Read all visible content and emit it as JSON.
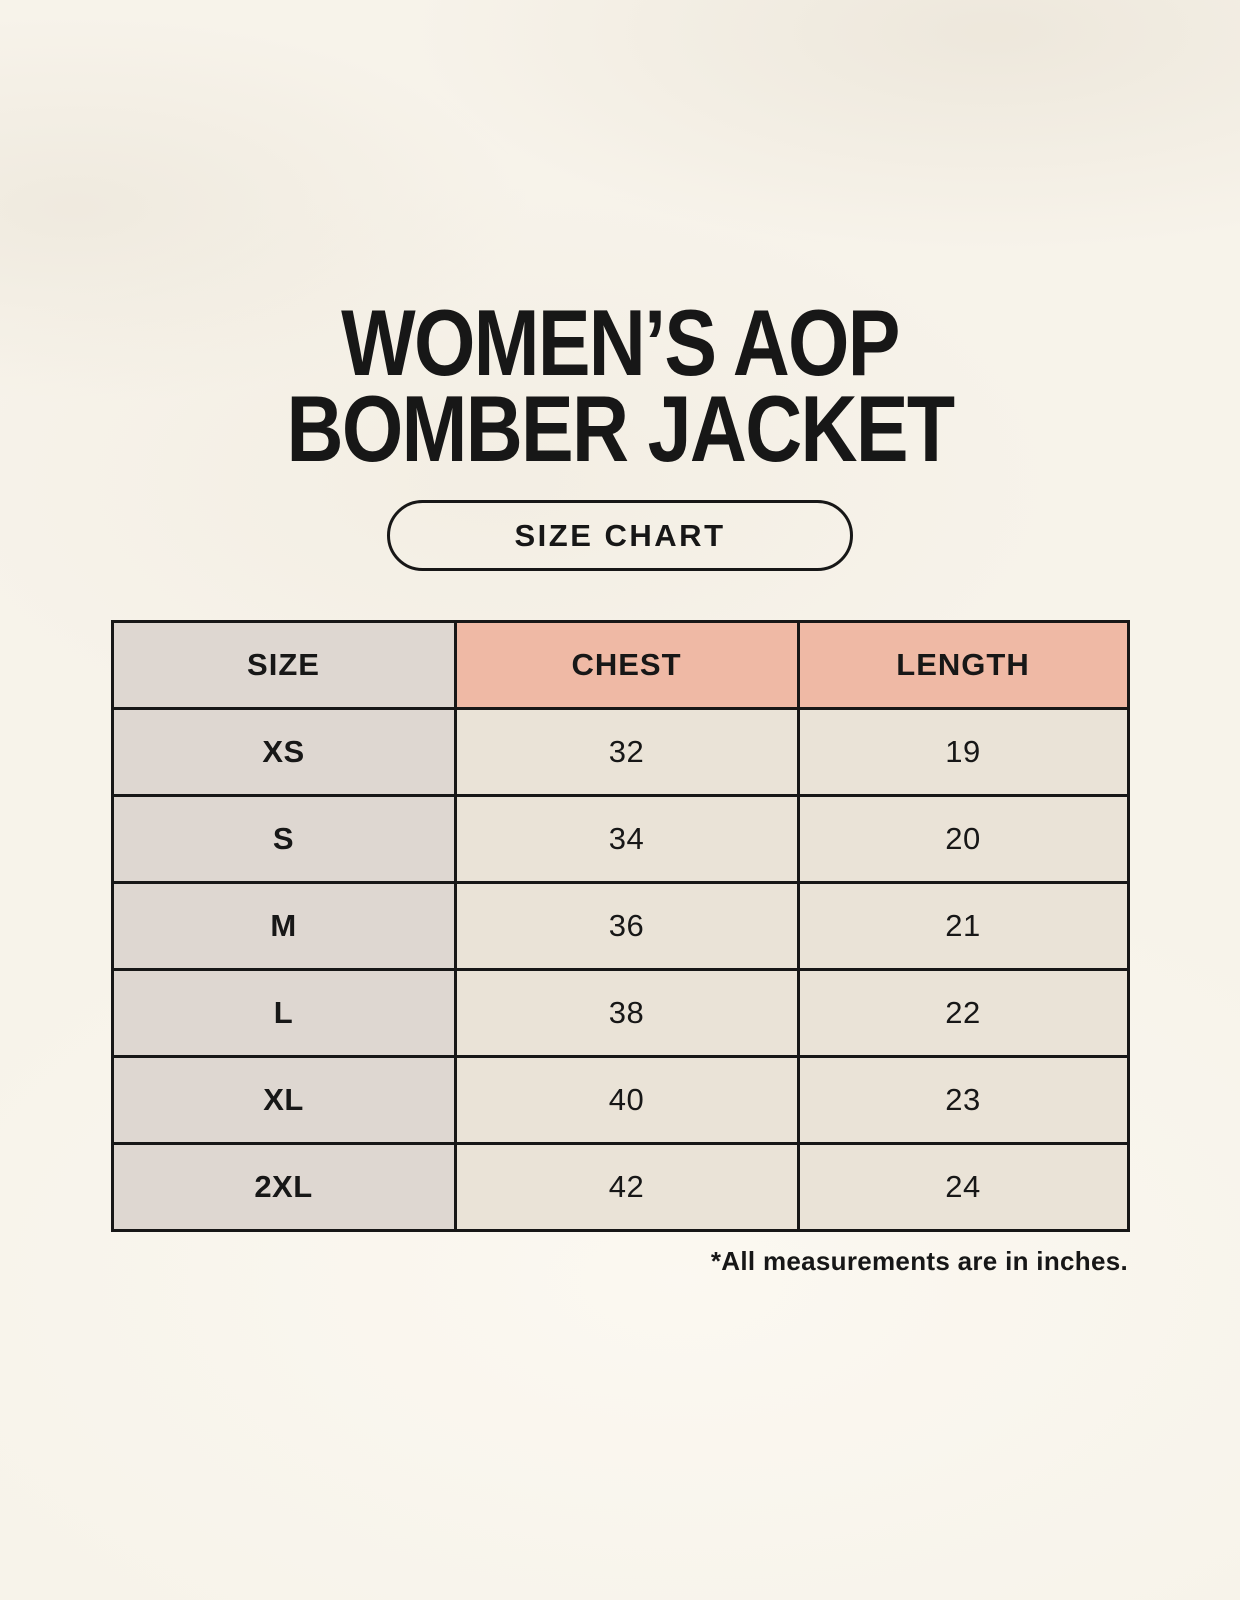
{
  "colors": {
    "background": "#f7f3ea",
    "table-gray": "#ded7d1",
    "table-salmon": "#efb9a5",
    "table-cream": "#eae3d7",
    "ink": "#171717"
  },
  "title": {
    "line1": "WOMEN’S AOP",
    "line2": "BOMBER JACKET"
  },
  "badge": {
    "label": "SIZE CHART"
  },
  "table": {
    "columns": [
      "SIZE",
      "CHEST",
      "LENGTH"
    ],
    "rows": [
      {
        "size": "XS",
        "chest": "32",
        "length": "19"
      },
      {
        "size": "S",
        "chest": "34",
        "length": "20"
      },
      {
        "size": "M",
        "chest": "36",
        "length": "21"
      },
      {
        "size": "L",
        "chest": "38",
        "length": "22"
      },
      {
        "size": "XL",
        "chest": "40",
        "length": "23"
      },
      {
        "size": "2XL",
        "chest": "42",
        "length": "24"
      }
    ]
  },
  "footnote": "*All measurements are in inches.",
  "chart_data": {
    "type": "table",
    "title": "WOMEN’S AOP BOMBER JACKET — SIZE CHART",
    "columns": [
      "SIZE",
      "CHEST",
      "LENGTH"
    ],
    "units": "inches",
    "rows": [
      [
        "XS",
        32,
        19
      ],
      [
        "S",
        34,
        20
      ],
      [
        "M",
        36,
        21
      ],
      [
        "L",
        38,
        22
      ],
      [
        "XL",
        40,
        23
      ],
      [
        "2XL",
        42,
        24
      ]
    ]
  }
}
